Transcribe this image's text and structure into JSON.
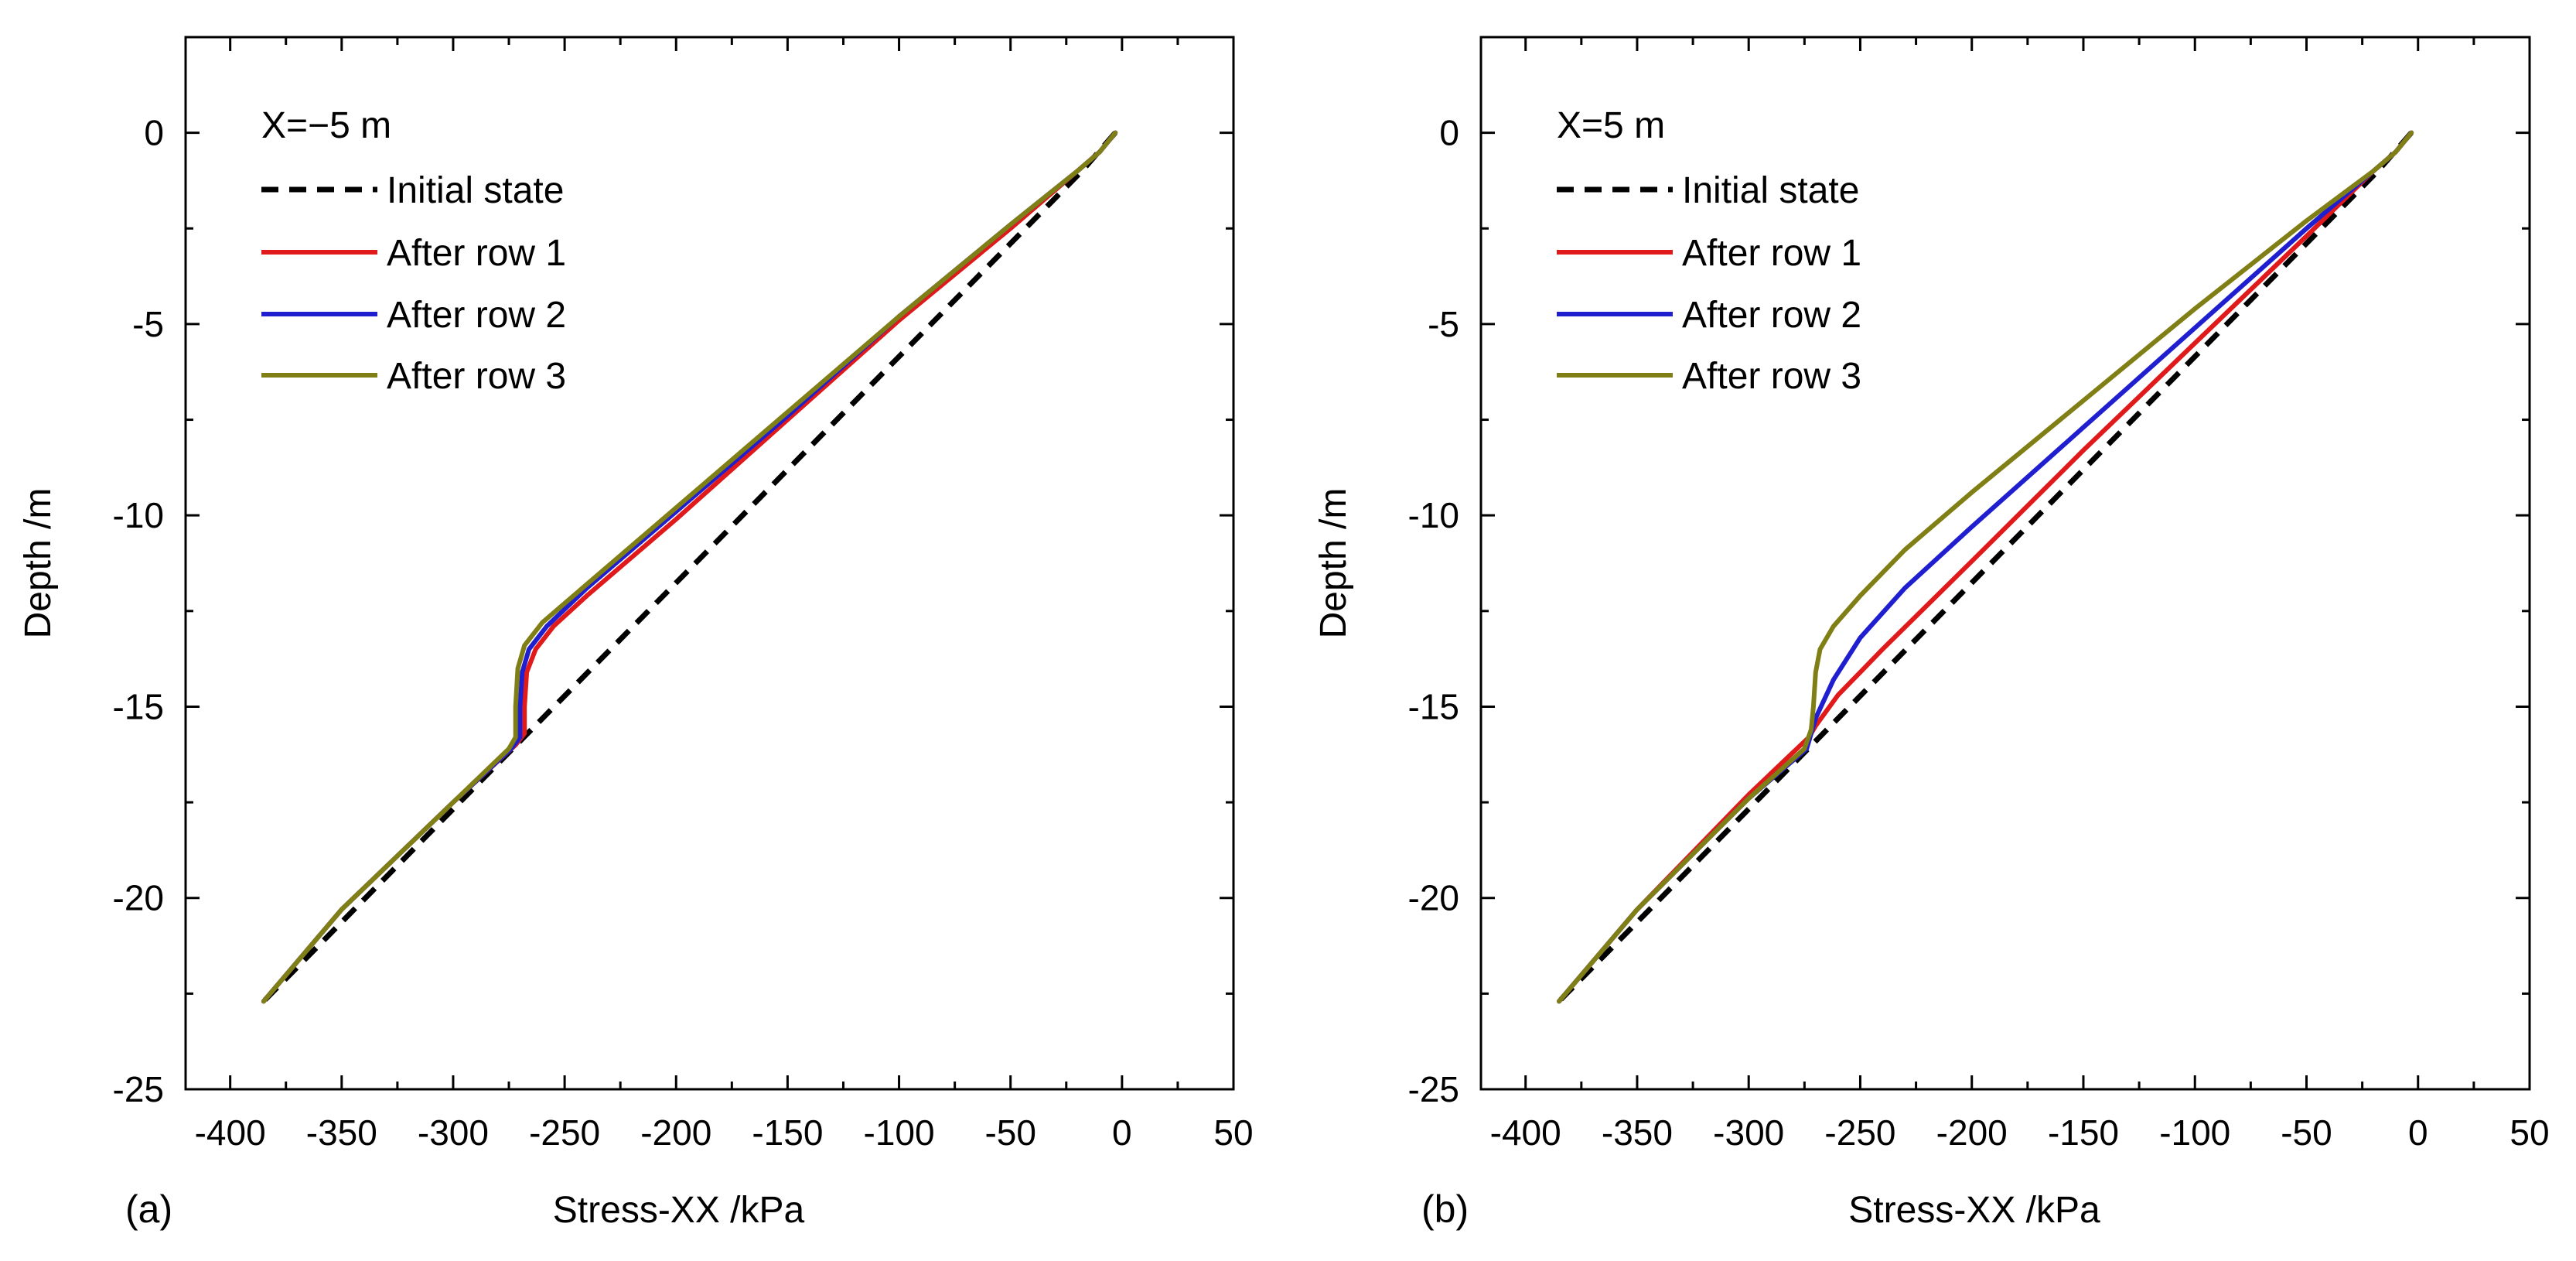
{
  "chart_data": [
    {
      "type": "line",
      "panel_label": "(a)",
      "annotation": "X=−5 m",
      "xlabel": "Stress-XX /kPa",
      "ylabel": "Depth /m",
      "xlim": [
        -420,
        50
      ],
      "ylim": [
        -25,
        2.5
      ],
      "xticks": [
        -400,
        -350,
        -300,
        -250,
        -200,
        -150,
        -100,
        -50,
        0,
        50
      ],
      "yticks": [
        0,
        -5,
        -10,
        -15,
        -20,
        -25
      ],
      "grid": false,
      "legend_position": "top-left",
      "series": [
        {
          "name": "Initial state",
          "color": "#000000",
          "dash": "dashed",
          "points": [
            [
              -3,
              0
            ],
            [
              -18,
              -1
            ],
            [
              -385,
              -22.7
            ]
          ]
        },
        {
          "name": "After row 1",
          "color": "#e0191b",
          "dash": "solid",
          "points": [
            [
              -3,
              0
            ],
            [
              -10,
              -0.5
            ],
            [
              -20,
              -1
            ],
            [
              -50,
              -2.5
            ],
            [
              -100,
              -4.9
            ],
            [
              -150,
              -7.5
            ],
            [
              -200,
              -10.1
            ],
            [
              -240,
              -12.1
            ],
            [
              -255,
              -12.9
            ],
            [
              -263,
              -13.5
            ],
            [
              -267,
              -14.1
            ],
            [
              -268,
              -15
            ],
            [
              -268,
              -15.7
            ],
            [
              -272,
              -16
            ],
            [
              -300,
              -17.5
            ],
            [
              -350,
              -20.3
            ],
            [
              -385,
              -22.7
            ]
          ]
        },
        {
          "name": "After row 2",
          "color": "#1f1fd0",
          "dash": "solid",
          "points": [
            [
              -3,
              0
            ],
            [
              -10,
              -0.5
            ],
            [
              -20,
              -1
            ],
            [
              -50,
              -2.4
            ],
            [
              -100,
              -4.8
            ],
            [
              -150,
              -7.4
            ],
            [
              -200,
              -9.9
            ],
            [
              -240,
              -11.9
            ],
            [
              -258,
              -12.9
            ],
            [
              -266,
              -13.5
            ],
            [
              -269,
              -14.1
            ],
            [
              -270,
              -15
            ],
            [
              -270,
              -15.8
            ],
            [
              -274,
              -16.1
            ],
            [
              -300,
              -17.5
            ],
            [
              -350,
              -20.3
            ],
            [
              -385,
              -22.7
            ]
          ]
        },
        {
          "name": "After row 3",
          "color": "#7f7f16",
          "dash": "solid",
          "points": [
            [
              -3,
              0
            ],
            [
              -10,
              -0.5
            ],
            [
              -20,
              -1
            ],
            [
              -50,
              -2.4
            ],
            [
              -100,
              -4.8
            ],
            [
              -150,
              -7.3
            ],
            [
              -200,
              -9.8
            ],
            [
              -240,
              -11.8
            ],
            [
              -260,
              -12.8
            ],
            [
              -268,
              -13.4
            ],
            [
              -271,
              -14
            ],
            [
              -272,
              -15
            ],
            [
              -272,
              -15.8
            ],
            [
              -275,
              -16.1
            ],
            [
              -300,
              -17.5
            ],
            [
              -350,
              -20.3
            ],
            [
              -385,
              -22.7
            ]
          ]
        }
      ]
    },
    {
      "type": "line",
      "panel_label": "(b)",
      "annotation": "X=5 m",
      "xlabel": "Stress-XX /kPa",
      "ylabel": "Depth /m",
      "xlim": [
        -420,
        50
      ],
      "ylim": [
        -25,
        2.5
      ],
      "xticks": [
        -400,
        -350,
        -300,
        -250,
        -200,
        -150,
        -100,
        -50,
        0,
        50
      ],
      "yticks": [
        0,
        -5,
        -10,
        -15,
        -20,
        -25
      ],
      "grid": false,
      "legend_position": "top-left",
      "series": [
        {
          "name": "Initial state",
          "color": "#000000",
          "dash": "dashed",
          "points": [
            [
              -3,
              0
            ],
            [
              -18,
              -1
            ],
            [
              -385,
              -22.7
            ]
          ]
        },
        {
          "name": "After row 1",
          "color": "#e0191b",
          "dash": "solid",
          "points": [
            [
              -3,
              0
            ],
            [
              -10,
              -0.5
            ],
            [
              -20,
              -1
            ],
            [
              -50,
              -2.7
            ],
            [
              -100,
              -5.5
            ],
            [
              -150,
              -8.3
            ],
            [
              -200,
              -11.2
            ],
            [
              -240,
              -13.5
            ],
            [
              -260,
              -14.7
            ],
            [
              -270,
              -15.5
            ],
            [
              -273,
              -15.8
            ],
            [
              -300,
              -17.3
            ],
            [
              -350,
              -20.3
            ],
            [
              -385,
              -22.7
            ]
          ]
        },
        {
          "name": "After row 2",
          "color": "#1f1fd0",
          "dash": "solid",
          "points": [
            [
              -3,
              0
            ],
            [
              -10,
              -0.5
            ],
            [
              -20,
              -1
            ],
            [
              -50,
              -2.5
            ],
            [
              -100,
              -5.1
            ],
            [
              -150,
              -7.7
            ],
            [
              -200,
              -10.3
            ],
            [
              -230,
              -11.9
            ],
            [
              -250,
              -13.2
            ],
            [
              -262,
              -14.3
            ],
            [
              -270,
              -15.3
            ],
            [
              -272,
              -15.7
            ],
            [
              -274,
              -16.1
            ],
            [
              -300,
              -17.4
            ],
            [
              -350,
              -20.3
            ],
            [
              -385,
              -22.7
            ]
          ]
        },
        {
          "name": "After row 3",
          "color": "#7f7f16",
          "dash": "solid",
          "points": [
            [
              -3,
              0
            ],
            [
              -10,
              -0.5
            ],
            [
              -20,
              -1
            ],
            [
              -50,
              -2.3
            ],
            [
              -100,
              -4.6
            ],
            [
              -150,
              -7
            ],
            [
              -200,
              -9.4
            ],
            [
              -230,
              -10.9
            ],
            [
              -250,
              -12.1
            ],
            [
              -262,
              -12.9
            ],
            [
              -268,
              -13.5
            ],
            [
              -270,
              -14.1
            ],
            [
              -271,
              -15
            ],
            [
              -272,
              -15.6
            ],
            [
              -275,
              -16.1
            ],
            [
              -300,
              -17.4
            ],
            [
              -350,
              -20.3
            ],
            [
              -385,
              -22.7
            ]
          ]
        }
      ]
    }
  ]
}
